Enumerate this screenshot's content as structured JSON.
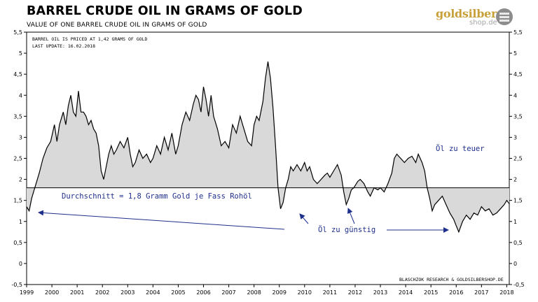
{
  "header": {
    "title": "BARREL CRUDE OIL IN GRAMS OF GOLD",
    "subtitle": "VALUE OF ONE BARREL CRUDE OIL IN GRAMS OF GOLD"
  },
  "logo": {
    "brand": "goldsilber",
    "domain": "shop.de"
  },
  "chart_data": {
    "type": "area",
    "title": "BARREL CRUDE OIL IN GRAMS OF GOLD",
    "subtitle": "VALUE OF ONE BARREL CRUDE OIL IN GRAMS OF GOLD",
    "xlabel": "",
    "ylabel": "",
    "xlim": [
      1999,
      2018.1
    ],
    "ylim": [
      -0.5,
      5.5
    ],
    "x_ticks": [
      "1999",
      "2000",
      "2001",
      "2002",
      "2003",
      "2004",
      "2005",
      "2006",
      "2007",
      "2008",
      "2009",
      "2010",
      "2011",
      "2012",
      "2013",
      "2014",
      "2015",
      "2016",
      "2017",
      "2018"
    ],
    "y_ticks": [
      "-0,5",
      "0",
      "0,5",
      "1",
      "1,5",
      "2",
      "2,5",
      "3",
      "3,5",
      "4",
      "4,5",
      "5",
      "5,5"
    ],
    "baseline": 1.8,
    "grid": false,
    "series": [
      {
        "values": [
          [
            1999.0,
            1.35
          ],
          [
            1999.1,
            1.25
          ],
          [
            1999.2,
            1.55
          ],
          [
            1999.35,
            1.85
          ],
          [
            1999.5,
            2.15
          ],
          [
            1999.65,
            2.5
          ],
          [
            1999.8,
            2.75
          ],
          [
            1999.95,
            2.9
          ],
          [
            2000.1,
            3.3
          ],
          [
            2000.2,
            2.9
          ],
          [
            2000.3,
            3.3
          ],
          [
            2000.45,
            3.6
          ],
          [
            2000.55,
            3.3
          ],
          [
            2000.65,
            3.75
          ],
          [
            2000.75,
            4.0
          ],
          [
            2000.85,
            3.6
          ],
          [
            2000.95,
            3.5
          ],
          [
            2001.05,
            4.1
          ],
          [
            2001.15,
            3.6
          ],
          [
            2001.25,
            3.6
          ],
          [
            2001.35,
            3.5
          ],
          [
            2001.45,
            3.3
          ],
          [
            2001.55,
            3.4
          ],
          [
            2001.65,
            3.2
          ],
          [
            2001.75,
            3.1
          ],
          [
            2001.85,
            2.8
          ],
          [
            2001.95,
            2.2
          ],
          [
            2002.05,
            2.0
          ],
          [
            2002.15,
            2.3
          ],
          [
            2002.25,
            2.6
          ],
          [
            2002.35,
            2.8
          ],
          [
            2002.45,
            2.6
          ],
          [
            2002.55,
            2.7
          ],
          [
            2002.7,
            2.9
          ],
          [
            2002.85,
            2.75
          ],
          [
            2003.0,
            3.0
          ],
          [
            2003.1,
            2.6
          ],
          [
            2003.2,
            2.3
          ],
          [
            2003.3,
            2.4
          ],
          [
            2003.45,
            2.7
          ],
          [
            2003.6,
            2.5
          ],
          [
            2003.75,
            2.6
          ],
          [
            2003.9,
            2.4
          ],
          [
            2004.0,
            2.5
          ],
          [
            2004.15,
            2.8
          ],
          [
            2004.3,
            2.6
          ],
          [
            2004.45,
            3.0
          ],
          [
            2004.6,
            2.7
          ],
          [
            2004.75,
            3.1
          ],
          [
            2004.9,
            2.6
          ],
          [
            2005.0,
            2.8
          ],
          [
            2005.15,
            3.3
          ],
          [
            2005.3,
            3.6
          ],
          [
            2005.45,
            3.4
          ],
          [
            2005.6,
            3.8
          ],
          [
            2005.7,
            4.0
          ],
          [
            2005.8,
            3.9
          ],
          [
            2005.9,
            3.6
          ],
          [
            2006.0,
            4.2
          ],
          [
            2006.1,
            3.9
          ],
          [
            2006.2,
            3.5
          ],
          [
            2006.3,
            4.0
          ],
          [
            2006.4,
            3.5
          ],
          [
            2006.55,
            3.2
          ],
          [
            2006.7,
            2.8
          ],
          [
            2006.85,
            2.9
          ],
          [
            2007.0,
            2.75
          ],
          [
            2007.15,
            3.3
          ],
          [
            2007.3,
            3.1
          ],
          [
            2007.45,
            3.5
          ],
          [
            2007.6,
            3.2
          ],
          [
            2007.75,
            2.9
          ],
          [
            2007.9,
            2.8
          ],
          [
            2008.0,
            3.3
          ],
          [
            2008.1,
            3.5
          ],
          [
            2008.2,
            3.4
          ],
          [
            2008.35,
            3.85
          ],
          [
            2008.45,
            4.4
          ],
          [
            2008.55,
            4.8
          ],
          [
            2008.65,
            4.4
          ],
          [
            2008.75,
            3.7
          ],
          [
            2008.85,
            2.8
          ],
          [
            2008.95,
            1.8
          ],
          [
            2009.05,
            1.3
          ],
          [
            2009.15,
            1.45
          ],
          [
            2009.25,
            1.8
          ],
          [
            2009.35,
            2.0
          ],
          [
            2009.45,
            2.3
          ],
          [
            2009.55,
            2.2
          ],
          [
            2009.7,
            2.35
          ],
          [
            2009.85,
            2.2
          ],
          [
            2010.0,
            2.4
          ],
          [
            2010.1,
            2.2
          ],
          [
            2010.2,
            2.3
          ],
          [
            2010.35,
            2.0
          ],
          [
            2010.5,
            1.9
          ],
          [
            2010.65,
            2.0
          ],
          [
            2010.8,
            2.1
          ],
          [
            2010.9,
            2.15
          ],
          [
            2011.0,
            2.05
          ],
          [
            2011.15,
            2.2
          ],
          [
            2011.3,
            2.35
          ],
          [
            2011.45,
            2.1
          ],
          [
            2011.55,
            1.7
          ],
          [
            2011.65,
            1.4
          ],
          [
            2011.75,
            1.55
          ],
          [
            2011.85,
            1.75
          ],
          [
            2011.95,
            1.8
          ],
          [
            2012.1,
            1.95
          ],
          [
            2012.2,
            2.0
          ],
          [
            2012.35,
            1.9
          ],
          [
            2012.5,
            1.7
          ],
          [
            2012.6,
            1.6
          ],
          [
            2012.75,
            1.8
          ],
          [
            2012.9,
            1.75
          ],
          [
            2013.0,
            1.8
          ],
          [
            2013.15,
            1.7
          ],
          [
            2013.3,
            1.9
          ],
          [
            2013.45,
            2.15
          ],
          [
            2013.55,
            2.5
          ],
          [
            2013.65,
            2.6
          ],
          [
            2013.8,
            2.5
          ],
          [
            2013.95,
            2.4
          ],
          [
            2014.1,
            2.5
          ],
          [
            2014.25,
            2.55
          ],
          [
            2014.4,
            2.4
          ],
          [
            2014.5,
            2.6
          ],
          [
            2014.65,
            2.4
          ],
          [
            2014.75,
            2.2
          ],
          [
            2014.85,
            1.8
          ],
          [
            2014.95,
            1.55
          ],
          [
            2015.05,
            1.25
          ],
          [
            2015.15,
            1.4
          ],
          [
            2015.3,
            1.5
          ],
          [
            2015.45,
            1.6
          ],
          [
            2015.6,
            1.4
          ],
          [
            2015.75,
            1.2
          ],
          [
            2015.9,
            1.05
          ],
          [
            2016.0,
            0.9
          ],
          [
            2016.1,
            0.75
          ],
          [
            2016.25,
            1.0
          ],
          [
            2016.4,
            1.15
          ],
          [
            2016.55,
            1.05
          ],
          [
            2016.7,
            1.2
          ],
          [
            2016.85,
            1.15
          ],
          [
            2017.0,
            1.35
          ],
          [
            2017.15,
            1.25
          ],
          [
            2017.3,
            1.3
          ],
          [
            2017.45,
            1.15
          ],
          [
            2017.6,
            1.2
          ],
          [
            2017.75,
            1.3
          ],
          [
            2017.9,
            1.4
          ],
          [
            2018.0,
            1.5
          ],
          [
            2018.1,
            1.42
          ]
        ]
      }
    ],
    "annotations": {
      "priced_at": "BARREL OIL IS PRICED AT 1,42 GRAMS OF GOLD",
      "last_update": "LAST UPDATE: 16.02.2018",
      "average": "Durchschnitt = 1,8 Gramm Gold je Fass Rohöl",
      "too_expensive": "Öl zu teuer",
      "too_cheap": "Öl zu günstig",
      "source": "BLASCHZOK RESEARCH & GOLDSILBERSHOP.DE"
    },
    "colors": {
      "line": "#000000",
      "fill": "#d9d9d9",
      "annotation": "#1f2f8c"
    }
  }
}
